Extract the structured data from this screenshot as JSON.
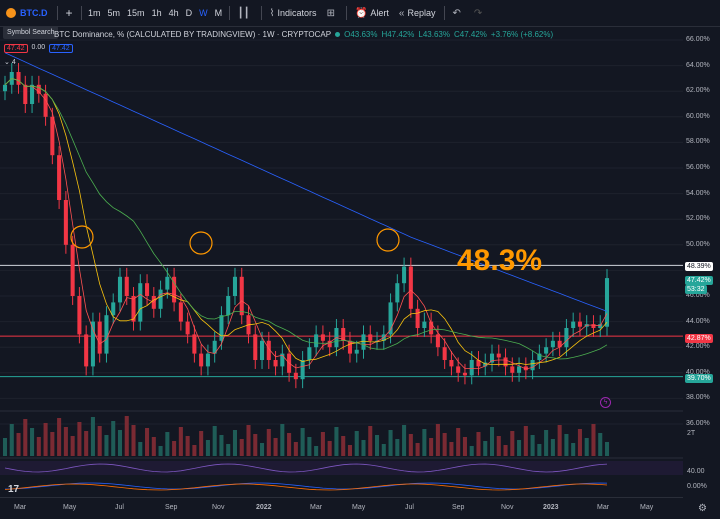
{
  "toolbar": {
    "symbol": "BTC.D",
    "add_label": "+",
    "timeframes": [
      "1m",
      "5m",
      "15m",
      "1h",
      "4h",
      "D",
      "W",
      "M"
    ],
    "active_timeframe": "W",
    "indicators_label": "Indicators",
    "alert_label": "Alert",
    "replay_label": "Replay"
  },
  "tooltip": {
    "symbol_search": "Symbol Search"
  },
  "legend": {
    "title": "BTC Dominance, % (CALCULATED BY TRADINGVIEW) · 1W · CRYPTOCAP",
    "open": "O43.63%",
    "high": "H47.42%",
    "low": "L43.63%",
    "close": "C47.42%",
    "change": "+3.76% (+8.62%)",
    "val1": "47.42",
    "val2": "0.00",
    "val3": "47.42",
    "row3": "4"
  },
  "annotation": {
    "big_text": "48.3%"
  },
  "y_axis": {
    "ticks": [
      "66.00%",
      "64.00%",
      "62.00%",
      "60.00%",
      "58.00%",
      "56.00%",
      "54.00%",
      "52.00%",
      "50.00%",
      "48.00%",
      "46.00%",
      "44.00%",
      "42.00%",
      "40.00%",
      "38.00%",
      "36.00%"
    ],
    "tag_resistance": "48.39%",
    "tag_price": "47.42%",
    "tag_price_sub": "53:32",
    "tag_red": "42.87%",
    "tag_support": "39.70%",
    "vol_label": "2T",
    "osc_label": "40.00",
    "osc2_label": "0.00%"
  },
  "x_axis": {
    "ticks": [
      "Mar",
      "May",
      "Jul",
      "Sep",
      "Nov",
      "2022",
      "Mar",
      "May",
      "Jul",
      "Sep",
      "Nov",
      "2023",
      "Mar",
      "May"
    ]
  },
  "colors": {
    "up": "#26a69a",
    "down": "#f23645",
    "ma_blue": "#2962ff",
    "ma_green": "#4caf50",
    "ma_yellow": "#f9c30e",
    "ma_red": "#ff5252",
    "accent_orange": "#ff9800"
  },
  "chart_data": {
    "type": "candlestick",
    "symbol": "BTC.D",
    "interval": "1W",
    "ylim": [
      36,
      67
    ],
    "resistance": 48.39,
    "support": 39.7,
    "current": 47.42,
    "closes": [
      62.5,
      63.5,
      62.5,
      61.0,
      62.5,
      61.8,
      60.0,
      57.0,
      53.5,
      50.0,
      46.0,
      43.0,
      40.5,
      44.0,
      41.5,
      44.5,
      45.5,
      47.5,
      46.0,
      44.0,
      47.0,
      46.0,
      45.0,
      46.5,
      47.5,
      45.5,
      44.0,
      43.0,
      41.5,
      40.5,
      41.5,
      42.5,
      44.5,
      46.0,
      47.5,
      44.5,
      43.0,
      41.0,
      42.5,
      41.0,
      40.5,
      41.5,
      40.0,
      39.5,
      41.0,
      42.0,
      43.0,
      42.5,
      42.0,
      43.5,
      42.5,
      41.5,
      41.8,
      43.0,
      42.5,
      42.5,
      43.0,
      45.5,
      47.0,
      48.3,
      45.0,
      43.5,
      44.0,
      43.0,
      42.0,
      41.0,
      40.5,
      40.0,
      39.8,
      41.0,
      40.5,
      40.8,
      41.5,
      41.2,
      40.5,
      40.0,
      40.5,
      40.2,
      41.0,
      41.5,
      42.0,
      42.5,
      42.0,
      43.5,
      44.0,
      43.6,
      43.8,
      43.5,
      43.8,
      47.4
    ],
    "opens": [
      62.0,
      62.5,
      63.5,
      62.5,
      61.0,
      62.5,
      61.8,
      60.0,
      57.0,
      53.5,
      50.0,
      46.0,
      43.0,
      40.5,
      44.0,
      41.5,
      44.5,
      45.5,
      47.5,
      46.0,
      44.0,
      47.0,
      46.0,
      45.0,
      46.5,
      47.5,
      45.5,
      44.0,
      43.0,
      41.5,
      40.5,
      41.5,
      42.5,
      44.5,
      46.0,
      47.5,
      44.5,
      43.0,
      41.0,
      42.5,
      41.0,
      40.5,
      41.5,
      40.0,
      39.5,
      41.0,
      42.0,
      43.0,
      42.5,
      42.0,
      43.5,
      42.5,
      41.5,
      41.8,
      43.0,
      42.5,
      42.5,
      43.0,
      45.5,
      47.0,
      48.3,
      45.0,
      43.5,
      44.0,
      43.0,
      42.0,
      41.0,
      40.5,
      40.0,
      39.8,
      41.0,
      40.5,
      40.8,
      41.5,
      41.2,
      40.5,
      40.0,
      40.5,
      40.2,
      41.0,
      41.5,
      42.0,
      42.5,
      42.0,
      43.5,
      44.0,
      43.6,
      43.8,
      43.5,
      43.6
    ]
  }
}
